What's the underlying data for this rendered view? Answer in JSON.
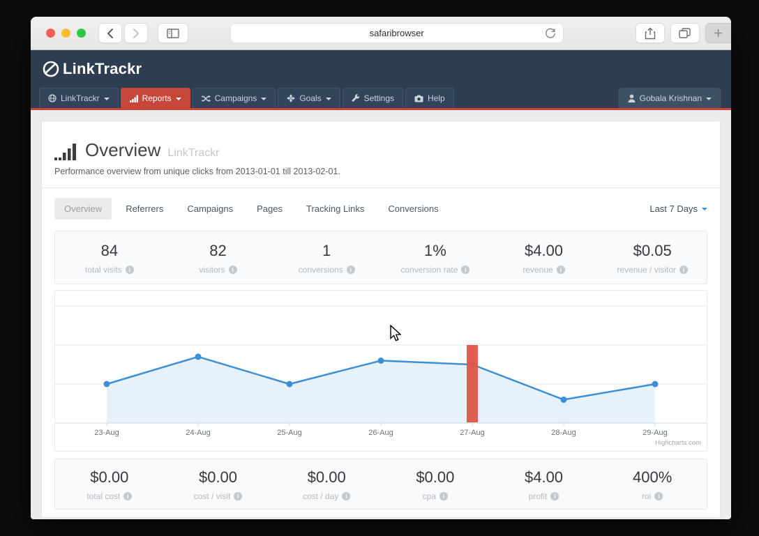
{
  "browser": {
    "url_text": "safaribrowser",
    "traffic_light_colors": [
      "#f55f53",
      "#f9bd32",
      "#2fc846"
    ]
  },
  "brand": {
    "logo_text": "LinkTrackr"
  },
  "nav": {
    "accent_color": "#c6473a",
    "bar_color": "#2e3d4f",
    "items": [
      {
        "label": "LinkTrackr",
        "icon": "globe-icon",
        "caret": true,
        "active": false
      },
      {
        "label": "Reports",
        "icon": "bar-chart-icon",
        "caret": true,
        "active": true
      },
      {
        "label": "Campaigns",
        "icon": "shuffle-icon",
        "caret": true,
        "active": false
      },
      {
        "label": "Goals",
        "icon": "goals-icon",
        "caret": true,
        "active": false
      },
      {
        "label": "Settings",
        "icon": "wrench-icon",
        "caret": false,
        "active": false
      },
      {
        "label": "Help",
        "icon": "camera-icon",
        "caret": false,
        "active": false
      }
    ],
    "user": {
      "label": "Gobala Krishnan"
    }
  },
  "page": {
    "title": "Overview",
    "title_suffix": "LinkTrackr",
    "subtitle": "Performance overview from unique clicks from 2013-01-01 till 2013-02-01."
  },
  "tabs": {
    "items": [
      {
        "label": "Overview",
        "active": true
      },
      {
        "label": "Referrers",
        "active": false
      },
      {
        "label": "Campaigns",
        "active": false
      },
      {
        "label": "Pages",
        "active": false
      },
      {
        "label": "Tracking Links",
        "active": false
      },
      {
        "label": "Conversions",
        "active": false
      }
    ],
    "range_selector": "Last 7 Days"
  },
  "stats_top": [
    {
      "value": "84",
      "label": "total visits"
    },
    {
      "value": "82",
      "label": "visitors"
    },
    {
      "value": "1",
      "label": "conversions"
    },
    {
      "value": "1%",
      "label": "conversion rate"
    },
    {
      "value": "$4.00",
      "label": "revenue"
    },
    {
      "value": "$0.05",
      "label": "revenue / visitor"
    }
  ],
  "stats_bottom": [
    {
      "value": "$0.00",
      "label": "total cost"
    },
    {
      "value": "$0.00",
      "label": "cost / visit"
    },
    {
      "value": "$0.00",
      "label": "cost / day"
    },
    {
      "value": "$0.00",
      "label": "cpa"
    },
    {
      "value": "$4.00",
      "label": "profit"
    },
    {
      "value": "400%",
      "label": "roi"
    }
  ],
  "chart_data": {
    "type": "area",
    "categories": [
      "23-Aug",
      "24-Aug",
      "25-Aug",
      "26-Aug",
      "27-Aug",
      "28-Aug",
      "29-Aug"
    ],
    "series": [
      {
        "name": "visits",
        "values": [
          10,
          17,
          10,
          16,
          15,
          6,
          10
        ],
        "color": "#3c8fd4",
        "fill": "#e7f1f9"
      }
    ],
    "highlight_bar": {
      "category": "27-Aug",
      "top_value": 20,
      "color": "#df5449"
    },
    "y_gridlines": [
      10,
      20,
      30
    ],
    "ylim": [
      0,
      34
    ],
    "grid": true,
    "legend": "none",
    "credits": "Highcharts.com"
  }
}
